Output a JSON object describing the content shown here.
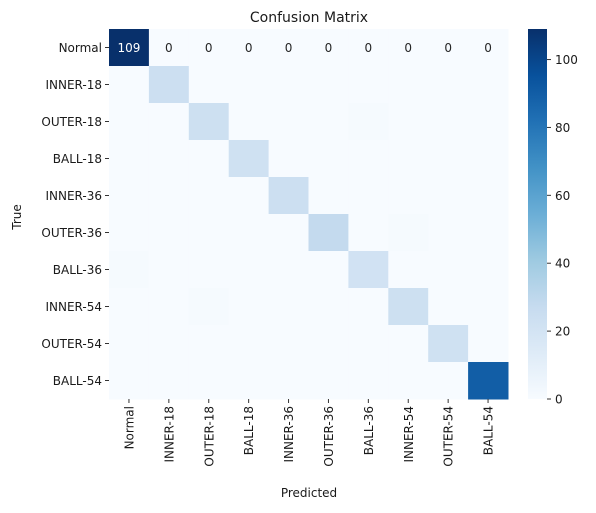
{
  "chart_data": {
    "type": "heatmap",
    "title": "Confusion Matrix",
    "xlabel": "Predicted",
    "ylabel": "True",
    "categories": [
      "Normal",
      "INNER-18",
      "OUTER-18",
      "BALL-18",
      "INNER-36",
      "OUTER-36",
      "BALL-36",
      "INNER-54",
      "OUTER-54",
      "BALL-54"
    ],
    "matrix": [
      [
        109,
        0,
        0,
        0,
        0,
        0,
        0,
        0,
        0,
        0
      ],
      [
        0,
        24,
        0,
        0,
        0,
        0,
        0,
        0,
        0,
        0
      ],
      [
        0,
        0,
        23,
        0,
        0,
        0,
        1,
        0,
        0,
        0
      ],
      [
        0,
        0,
        0,
        22,
        0,
        0,
        0,
        0,
        0,
        0
      ],
      [
        0,
        0,
        0,
        0,
        24,
        0,
        0,
        0,
        0,
        0
      ],
      [
        0,
        0,
        0,
        0,
        0,
        28,
        0,
        1,
        0,
        0
      ],
      [
        1,
        0,
        0,
        0,
        0,
        0,
        21,
        0,
        0,
        0
      ],
      [
        0,
        0,
        1,
        0,
        0,
        0,
        0,
        23,
        0,
        0
      ],
      [
        0,
        0,
        0,
        0,
        0,
        0,
        0,
        0,
        22,
        0
      ],
      [
        0,
        0,
        0,
        0,
        0,
        0,
        0,
        0,
        0,
        90
      ]
    ],
    "annotated_row": 0,
    "colorbar": {
      "min": 0,
      "max": 109,
      "ticks": [
        0,
        20,
        40,
        60,
        80,
        100
      ]
    },
    "colormap": "Blues"
  }
}
